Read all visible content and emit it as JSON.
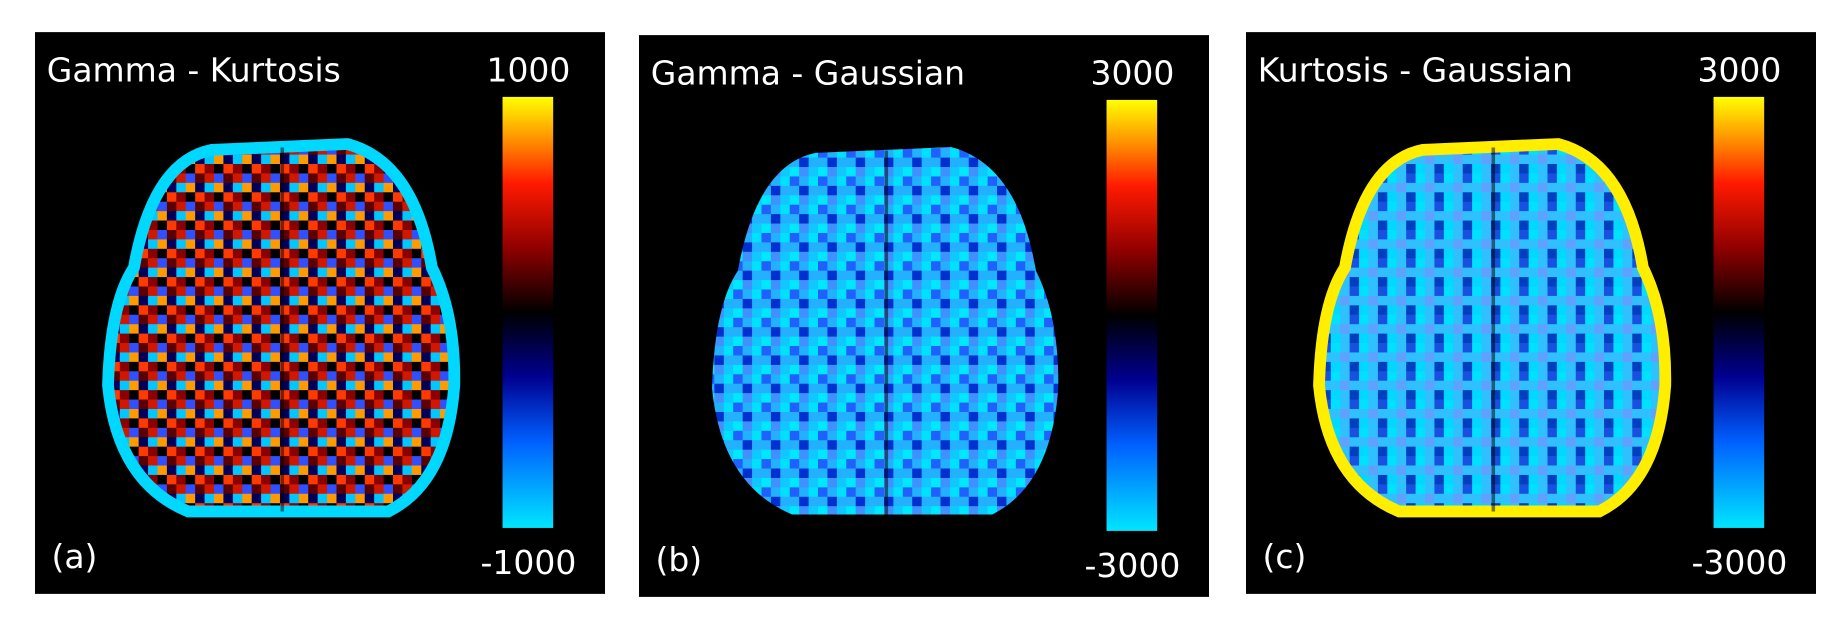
{
  "panels": [
    {
      "title": "Gamma - Kurtosis",
      "label": "(a)",
      "clim": [
        -1000,
        1000
      ]
    },
    {
      "title": "Gamma - Gaussian",
      "label": "(b)",
      "clim": [
        -3000,
        3000
      ]
    },
    {
      "title": "Kurtosis - Gaussian",
      "label": "(c)",
      "clim": [
        -3000,
        3000
      ]
    }
  ]
}
